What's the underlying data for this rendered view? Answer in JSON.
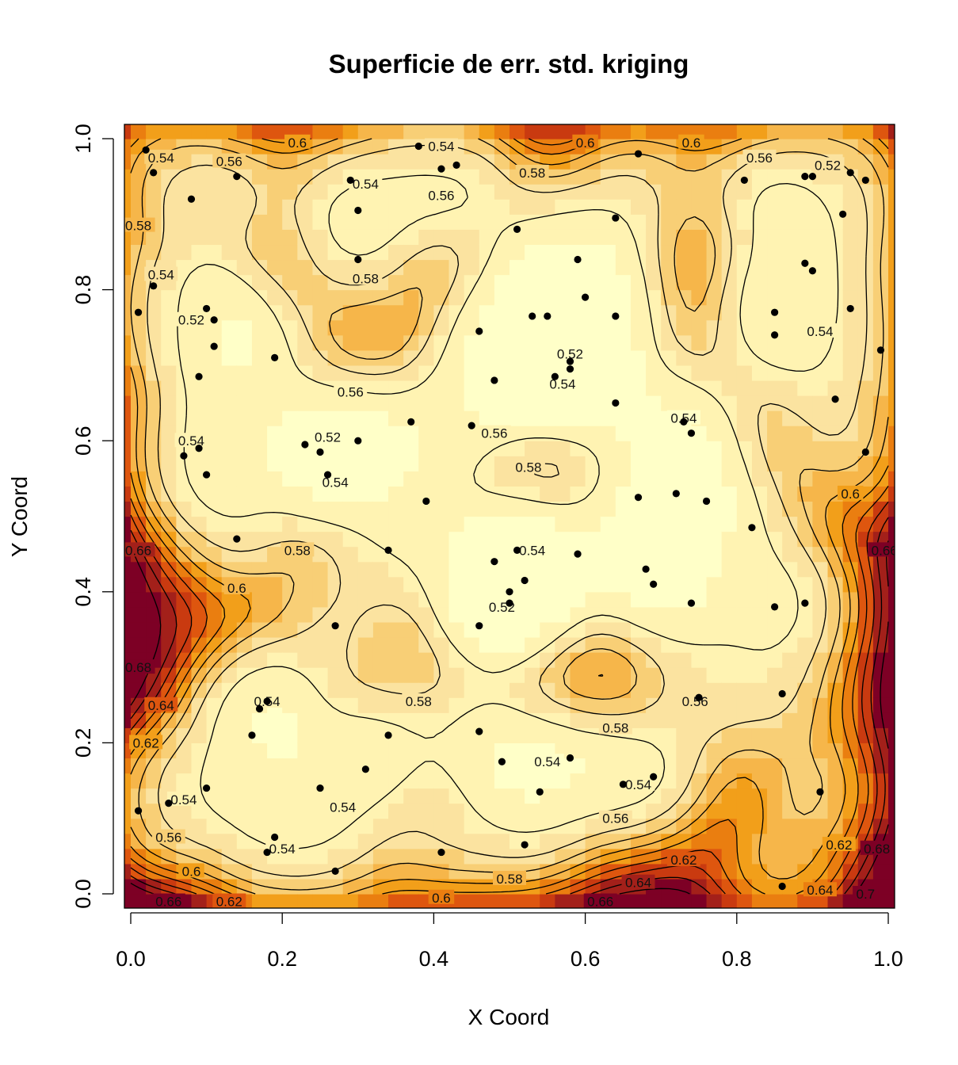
{
  "chart_data": {
    "type": "heatmap",
    "title": "Superficie de err. std. kriging",
    "xlabel": "X Coord",
    "ylabel": "Y Coord",
    "xlim": [
      0.0,
      1.0
    ],
    "ylim": [
      0.0,
      1.0
    ],
    "x_ticks": [
      "0.0",
      "0.2",
      "0.4",
      "0.6",
      "0.8",
      "1.0"
    ],
    "y_ticks": [
      "0.0",
      "0.2",
      "0.4",
      "0.6",
      "0.8",
      "1.0"
    ],
    "palette": [
      "#FFFFC8",
      "#FFF3B2",
      "#FBE3A0",
      "#F8CF76",
      "#F6B64A",
      "#F29F1A",
      "#EA7E10",
      "#DE560F",
      "#C93A10",
      "#A3201A",
      "#7D0025"
    ],
    "value_range": [
      0.51,
      0.71
    ],
    "contour_labels": [
      {
        "text": "0.54",
        "x": 0.04,
        "y": 0.975
      },
      {
        "text": "0.56",
        "x": 0.13,
        "y": 0.97
      },
      {
        "text": "0.6",
        "x": 0.22,
        "y": 0.995
      },
      {
        "text": "0.54",
        "x": 0.41,
        "y": 0.99
      },
      {
        "text": "0.54",
        "x": 0.31,
        "y": 0.94
      },
      {
        "text": "0.56",
        "x": 0.41,
        "y": 0.925
      },
      {
        "text": "0.58",
        "x": 0.53,
        "y": 0.955
      },
      {
        "text": "0.6",
        "x": 0.6,
        "y": 0.995
      },
      {
        "text": "0.6",
        "x": 0.74,
        "y": 0.995
      },
      {
        "text": "0.56",
        "x": 0.83,
        "y": 0.975
      },
      {
        "text": "0.52",
        "x": 0.92,
        "y": 0.965
      },
      {
        "text": "0.58",
        "x": 0.01,
        "y": 0.885
      },
      {
        "text": "0.54",
        "x": 0.04,
        "y": 0.82
      },
      {
        "text": "0.52",
        "x": 0.08,
        "y": 0.76
      },
      {
        "text": "0.58",
        "x": 0.31,
        "y": 0.815
      },
      {
        "text": "0.52",
        "x": 0.58,
        "y": 0.715
      },
      {
        "text": "0.54",
        "x": 0.57,
        "y": 0.675
      },
      {
        "text": "0.54",
        "x": 0.91,
        "y": 0.745
      },
      {
        "text": "0.56",
        "x": 0.29,
        "y": 0.665
      },
      {
        "text": "0.54",
        "x": 0.73,
        "y": 0.63
      },
      {
        "text": "0.54",
        "x": 0.08,
        "y": 0.6
      },
      {
        "text": "0.52",
        "x": 0.26,
        "y": 0.605
      },
      {
        "text": "0.54",
        "x": 0.27,
        "y": 0.545
      },
      {
        "text": "0.56",
        "x": 0.48,
        "y": 0.61
      },
      {
        "text": "0.58",
        "x": 0.525,
        "y": 0.565
      },
      {
        "text": "0.6",
        "x": 0.95,
        "y": 0.53
      },
      {
        "text": "0.58",
        "x": 0.22,
        "y": 0.455
      },
      {
        "text": "0.54",
        "x": 0.53,
        "y": 0.455
      },
      {
        "text": "0.66",
        "x": 0.01,
        "y": 0.455
      },
      {
        "text": "0.66",
        "x": 0.995,
        "y": 0.455
      },
      {
        "text": "0.6",
        "x": 0.14,
        "y": 0.405
      },
      {
        "text": "0.52",
        "x": 0.49,
        "y": 0.38
      },
      {
        "text": "0.68",
        "x": 0.01,
        "y": 0.3
      },
      {
        "text": "0.56",
        "x": 0.745,
        "y": 0.255
      },
      {
        "text": "0.58",
        "x": 0.38,
        "y": 0.255
      },
      {
        "text": "0.64",
        "x": 0.04,
        "y": 0.25
      },
      {
        "text": "0.54",
        "x": 0.18,
        "y": 0.255
      },
      {
        "text": "0.58",
        "x": 0.64,
        "y": 0.22
      },
      {
        "text": "0.62",
        "x": 0.02,
        "y": 0.2
      },
      {
        "text": "0.54",
        "x": 0.55,
        "y": 0.175
      },
      {
        "text": "0.54",
        "x": 0.67,
        "y": 0.145
      },
      {
        "text": "0.54",
        "x": 0.07,
        "y": 0.125
      },
      {
        "text": "0.54",
        "x": 0.28,
        "y": 0.115
      },
      {
        "text": "0.56",
        "x": 0.05,
        "y": 0.075
      },
      {
        "text": "0.56",
        "x": 0.64,
        "y": 0.1
      },
      {
        "text": "0.54",
        "x": 0.2,
        "y": 0.06
      },
      {
        "text": "0.62",
        "x": 0.73,
        "y": 0.045
      },
      {
        "text": "0.62",
        "x": 0.935,
        "y": 0.065
      },
      {
        "text": "0.68",
        "x": 0.985,
        "y": 0.06
      },
      {
        "text": "0.6",
        "x": 0.08,
        "y": 0.03
      },
      {
        "text": "0.58",
        "x": 0.5,
        "y": 0.02
      },
      {
        "text": "0.64",
        "x": 0.67,
        "y": 0.015
      },
      {
        "text": "0.64",
        "x": 0.91,
        "y": 0.005
      },
      {
        "text": "0.66",
        "x": 0.05,
        "y": -0.01
      },
      {
        "text": "0.62",
        "x": 0.13,
        "y": -0.01
      },
      {
        "text": "0.6",
        "x": 0.41,
        "y": -0.005
      },
      {
        "text": "0.66",
        "x": 0.62,
        "y": -0.01
      },
      {
        "text": "0.7",
        "x": 0.97,
        "y": 0.0
      }
    ],
    "points": [
      [
        0.02,
        0.985
      ],
      [
        0.03,
        0.955
      ],
      [
        0.08,
        0.92
      ],
      [
        0.14,
        0.95
      ],
      [
        0.29,
        0.945
      ],
      [
        0.3,
        0.905
      ],
      [
        0.3,
        0.84
      ],
      [
        0.38,
        0.99
      ],
      [
        0.41,
        0.96
      ],
      [
        0.43,
        0.965
      ],
      [
        0.51,
        0.88
      ],
      [
        0.64,
        0.895
      ],
      [
        0.67,
        0.98
      ],
      [
        0.81,
        0.945
      ],
      [
        0.89,
        0.95
      ],
      [
        0.9,
        0.95
      ],
      [
        0.95,
        0.955
      ],
      [
        0.97,
        0.945
      ],
      [
        0.94,
        0.9
      ],
      [
        0.89,
        0.835
      ],
      [
        0.9,
        0.825
      ],
      [
        0.01,
        0.77
      ],
      [
        0.03,
        0.805
      ],
      [
        0.1,
        0.775
      ],
      [
        0.11,
        0.76
      ],
      [
        0.11,
        0.725
      ],
      [
        0.09,
        0.685
      ],
      [
        0.19,
        0.71
      ],
      [
        0.59,
        0.84
      ],
      [
        0.6,
        0.79
      ],
      [
        0.53,
        0.765
      ],
      [
        0.55,
        0.765
      ],
      [
        0.64,
        0.765
      ],
      [
        0.46,
        0.745
      ],
      [
        0.58,
        0.695
      ],
      [
        0.58,
        0.705
      ],
      [
        0.56,
        0.685
      ],
      [
        0.48,
        0.68
      ],
      [
        0.64,
        0.65
      ],
      [
        0.45,
        0.62
      ],
      [
        0.37,
        0.625
      ],
      [
        0.85,
        0.77
      ],
      [
        0.85,
        0.74
      ],
      [
        0.95,
        0.775
      ],
      [
        0.99,
        0.72
      ],
      [
        0.93,
        0.655
      ],
      [
        0.97,
        0.585
      ],
      [
        0.07,
        0.58
      ],
      [
        0.09,
        0.59
      ],
      [
        0.1,
        0.555
      ],
      [
        0.23,
        0.595
      ],
      [
        0.25,
        0.585
      ],
      [
        0.3,
        0.6
      ],
      [
        0.26,
        0.555
      ],
      [
        0.39,
        0.52
      ],
      [
        0.73,
        0.625
      ],
      [
        0.74,
        0.61
      ],
      [
        0.67,
        0.525
      ],
      [
        0.72,
        0.53
      ],
      [
        0.76,
        0.52
      ],
      [
        0.82,
        0.485
      ],
      [
        0.14,
        0.47
      ],
      [
        0.34,
        0.455
      ],
      [
        0.51,
        0.455
      ],
      [
        0.48,
        0.44
      ],
      [
        0.5,
        0.4
      ],
      [
        0.52,
        0.415
      ],
      [
        0.5,
        0.385
      ],
      [
        0.59,
        0.45
      ],
      [
        0.68,
        0.43
      ],
      [
        0.69,
        0.41
      ],
      [
        0.74,
        0.385
      ],
      [
        0.85,
        0.38
      ],
      [
        0.89,
        0.385
      ],
      [
        0.46,
        0.355
      ],
      [
        0.27,
        0.355
      ],
      [
        0.86,
        0.265
      ],
      [
        0.75,
        0.26
      ],
      [
        0.18,
        0.255
      ],
      [
        0.17,
        0.245
      ],
      [
        0.16,
        0.21
      ],
      [
        0.34,
        0.21
      ],
      [
        0.46,
        0.215
      ],
      [
        0.49,
        0.175
      ],
      [
        0.58,
        0.18
      ],
      [
        0.54,
        0.135
      ],
      [
        0.31,
        0.165
      ],
      [
        0.25,
        0.14
      ],
      [
        0.1,
        0.14
      ],
      [
        0.05,
        0.12
      ],
      [
        0.01,
        0.11
      ],
      [
        0.65,
        0.145
      ],
      [
        0.69,
        0.155
      ],
      [
        0.91,
        0.135
      ],
      [
        0.52,
        0.065
      ],
      [
        0.19,
        0.075
      ],
      [
        0.18,
        0.055
      ],
      [
        0.41,
        0.055
      ],
      [
        0.27,
        0.03
      ],
      [
        0.86,
        0.01
      ]
    ]
  }
}
